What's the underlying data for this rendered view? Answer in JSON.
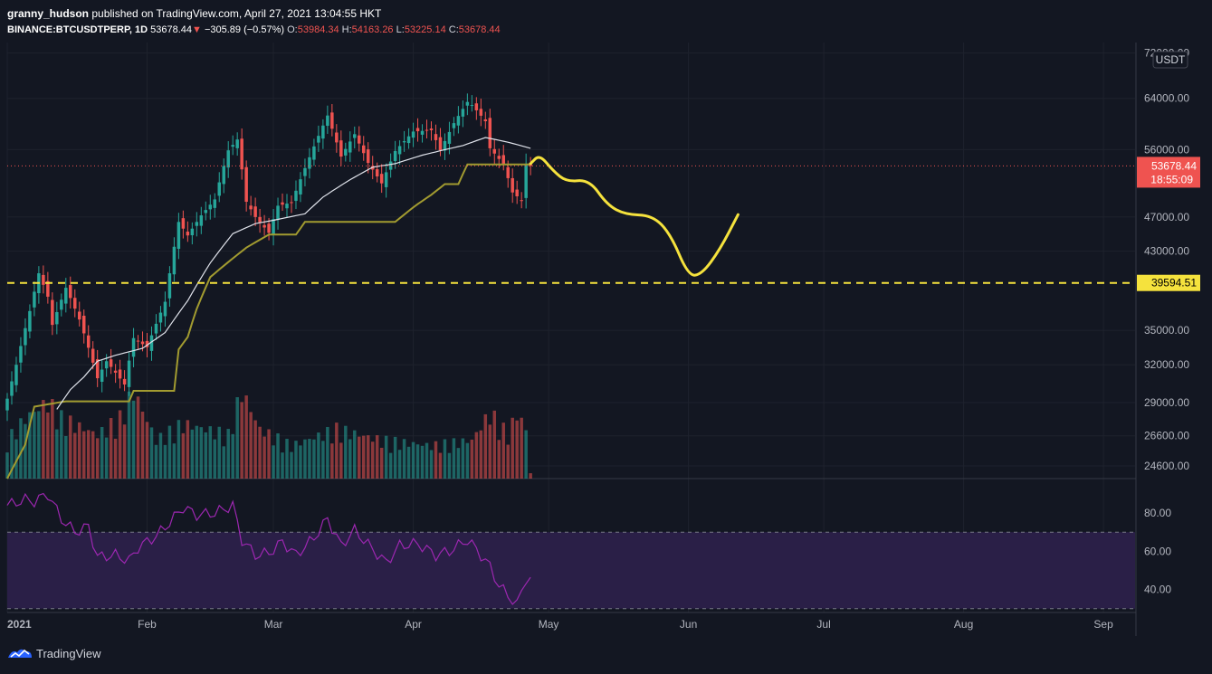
{
  "header": {
    "author": "granny_hudson",
    "published_text": "published on TradingView.com, April 27, 2021 13:04:55 HKT",
    "symbol": "BINANCE:BTCUSDTPERP, 1D",
    "last": "53678.44",
    "change_arrow": "▼",
    "change": "−305.89 (−0.57%)",
    "o_label": "O:",
    "o": "53984.34",
    "h_label": "H:",
    "h": "54163.26",
    "l_label": "L:",
    "l": "53225.14",
    "c_label": "C:",
    "c": "53678.44"
  },
  "currency_badge": "USDT",
  "price_tag": {
    "value": "53678.44",
    "countdown": "18:55:09"
  },
  "level_tag": "39594.51",
  "brand": "TradingView",
  "colors": {
    "background": "#131722",
    "bull": "#26a69a",
    "bear": "#ef5350",
    "ema": "#e0e3eb",
    "baseline": "#a29b30",
    "forecast": "#f5e23d",
    "rsi": "#9c27b0",
    "rsi_band": "#2a1f47"
  },
  "chart_data": [
    {
      "type": "candlestick",
      "title": "",
      "x_type": "date",
      "x_range": [
        "2021-01-01",
        "2021-09-08"
      ],
      "x_ticks": [
        "2021",
        "Feb",
        "Mar",
        "Apr",
        "May",
        "Jun",
        "Jul",
        "Aug",
        "Sep"
      ],
      "y_scale": "log",
      "y_range": [
        23800,
        74000
      ],
      "y_ticks": [
        "72000.00",
        "64000.00",
        "56000.00",
        "47000.00",
        "43000.00",
        "35000.00",
        "32000.00",
        "29000.00",
        "26600.00",
        "24600.00"
      ],
      "close_key_points": [
        [
          "2021-01-01",
          29300
        ],
        [
          "2021-01-03",
          32000
        ],
        [
          "2021-01-06",
          36800
        ],
        [
          "2021-01-08",
          40600
        ],
        [
          "2021-01-10",
          38200
        ],
        [
          "2021-01-11",
          35500
        ],
        [
          "2021-01-14",
          39100
        ],
        [
          "2021-01-17",
          36000
        ],
        [
          "2021-01-21",
          30900
        ],
        [
          "2021-01-23",
          32300
        ],
        [
          "2021-01-27",
          30400
        ],
        [
          "2021-01-29",
          34300
        ],
        [
          "2021-02-01",
          33500
        ],
        [
          "2021-02-05",
          37700
        ],
        [
          "2021-02-08",
          46400
        ],
        [
          "2021-02-10",
          44800
        ],
        [
          "2021-02-13",
          47200
        ],
        [
          "2021-02-16",
          49200
        ],
        [
          "2021-02-19",
          55900
        ],
        [
          "2021-02-21",
          57500
        ],
        [
          "2021-02-23",
          48900
        ],
        [
          "2021-02-25",
          47000
        ],
        [
          "2021-02-28",
          45100
        ],
        [
          "2021-03-02",
          48400
        ],
        [
          "2021-03-05",
          48800
        ],
        [
          "2021-03-09",
          54900
        ],
        [
          "2021-03-13",
          61200
        ],
        [
          "2021-03-16",
          55000
        ],
        [
          "2021-03-19",
          58300
        ],
        [
          "2021-03-22",
          54100
        ],
        [
          "2021-03-25",
          51300
        ],
        [
          "2021-03-28",
          55800
        ],
        [
          "2021-04-01",
          58700
        ],
        [
          "2021-04-05",
          58900
        ],
        [
          "2021-04-07",
          55900
        ],
        [
          "2021-04-10",
          60000
        ],
        [
          "2021-04-13",
          63400
        ],
        [
          "2021-04-14",
          62900
        ],
        [
          "2021-04-17",
          60300
        ],
        [
          "2021-04-18",
          56200
        ],
        [
          "2021-04-21",
          53900
        ],
        [
          "2021-04-23",
          50100
        ],
        [
          "2021-04-25",
          49100
        ],
        [
          "2021-04-26",
          54000
        ],
        [
          "2021-04-27",
          53678
        ]
      ],
      "baseline_key_points": [
        [
          "2021-01-01",
          23800
        ],
        [
          "2021-01-05",
          26000
        ],
        [
          "2021-01-07",
          28700
        ],
        [
          "2021-01-14",
          29100
        ],
        [
          "2021-01-28",
          29100
        ],
        [
          "2021-01-29",
          29900
        ],
        [
          "2021-02-07",
          29900
        ],
        [
          "2021-02-08",
          33300
        ],
        [
          "2021-02-10",
          34400
        ],
        [
          "2021-02-12",
          37000
        ],
        [
          "2021-02-15",
          40200
        ],
        [
          "2021-02-20",
          42200
        ],
        [
          "2021-02-23",
          43400
        ],
        [
          "2021-02-28",
          44900
        ],
        [
          "2021-03-06",
          44900
        ],
        [
          "2021-03-08",
          46400
        ],
        [
          "2021-03-28",
          46400
        ],
        [
          "2021-04-01",
          48200
        ],
        [
          "2021-04-05",
          49800
        ],
        [
          "2021-04-08",
          51200
        ],
        [
          "2021-04-11",
          51200
        ],
        [
          "2021-04-13",
          53900
        ],
        [
          "2021-04-27",
          53900
        ]
      ],
      "ema_key_points": [
        [
          "2021-01-12",
          28500
        ],
        [
          "2021-01-15",
          30000
        ],
        [
          "2021-01-18",
          31000
        ],
        [
          "2021-01-21",
          32300
        ],
        [
          "2021-01-25",
          32800
        ],
        [
          "2021-01-31",
          33400
        ],
        [
          "2021-02-05",
          34800
        ],
        [
          "2021-02-10",
          37800
        ],
        [
          "2021-02-15",
          41700
        ],
        [
          "2021-02-20",
          45000
        ],
        [
          "2021-02-25",
          46200
        ],
        [
          "2021-03-01",
          46600
        ],
        [
          "2021-03-08",
          47400
        ],
        [
          "2021-03-12",
          49500
        ],
        [
          "2021-03-18",
          51800
        ],
        [
          "2021-03-23",
          53500
        ],
        [
          "2021-03-28",
          54000
        ],
        [
          "2021-04-03",
          55200
        ],
        [
          "2021-04-08",
          56000
        ],
        [
          "2021-04-12",
          56600
        ],
        [
          "2021-04-17",
          57800
        ],
        [
          "2021-04-22",
          57100
        ],
        [
          "2021-04-27",
          56200
        ]
      ],
      "horizontal_levels": [
        53678.44,
        39594.51
      ],
      "forecast_path": [
        [
          "2021-04-27",
          54000
        ],
        [
          "2021-04-29",
          55300
        ],
        [
          "2021-05-02",
          53000
        ],
        [
          "2021-05-05",
          51500
        ],
        [
          "2021-05-10",
          51800
        ],
        [
          "2021-05-14",
          48500
        ],
        [
          "2021-05-18",
          47300
        ],
        [
          "2021-05-24",
          47200
        ],
        [
          "2021-05-28",
          45000
        ],
        [
          "2021-06-01",
          40300
        ],
        [
          "2021-06-04",
          40500
        ],
        [
          "2021-06-08",
          43200
        ],
        [
          "2021-06-12",
          47300
        ]
      ],
      "volume_key_points": [
        [
          "2021-01-01",
          0.35
        ],
        [
          "2021-01-05",
          0.55
        ],
        [
          "2021-01-10",
          0.7
        ],
        [
          "2021-01-13",
          0.55
        ],
        [
          "2021-01-21",
          0.4
        ],
        [
          "2021-01-26",
          0.55
        ],
        [
          "2021-01-29",
          0.8
        ],
        [
          "2021-02-03",
          0.35
        ],
        [
          "2021-02-09",
          0.5
        ],
        [
          "2021-02-19",
          0.4
        ],
        [
          "2021-02-22",
          0.8
        ],
        [
          "2021-02-26",
          0.45
        ],
        [
          "2021-03-05",
          0.3
        ],
        [
          "2021-03-15",
          0.45
        ],
        [
          "2021-03-25",
          0.35
        ],
        [
          "2021-04-05",
          0.3
        ],
        [
          "2021-04-14",
          0.35
        ],
        [
          "2021-04-18",
          0.6
        ],
        [
          "2021-04-22",
          0.4
        ],
        [
          "2021-04-24",
          0.6
        ],
        [
          "2021-04-26",
          0.45
        ],
        [
          "2021-04-27",
          0.05
        ]
      ]
    },
    {
      "type": "line",
      "title": "",
      "y_range": [
        28,
        98
      ],
      "y_ticks": [
        "80.00",
        "60.00",
        "40.00"
      ],
      "bands": [
        70,
        30
      ],
      "rsi_key_points": [
        [
          "2021-01-01",
          84
        ],
        [
          "2021-01-05",
          87
        ],
        [
          "2021-01-07",
          86
        ],
        [
          "2021-01-10",
          90
        ],
        [
          "2021-01-13",
          77
        ],
        [
          "2021-01-16",
          70
        ],
        [
          "2021-01-19",
          73
        ],
        [
          "2021-01-21",
          57
        ],
        [
          "2021-01-25",
          58
        ],
        [
          "2021-01-28",
          55
        ],
        [
          "2021-01-30",
          62
        ],
        [
          "2021-02-03",
          68
        ],
        [
          "2021-02-06",
          75
        ],
        [
          "2021-02-09",
          83
        ],
        [
          "2021-02-12",
          79
        ],
        [
          "2021-02-16",
          80
        ],
        [
          "2021-02-20",
          84
        ],
        [
          "2021-02-22",
          66
        ],
        [
          "2021-02-25",
          58
        ],
        [
          "2021-02-28",
          59
        ],
        [
          "2021-03-03",
          65
        ],
        [
          "2021-03-06",
          58
        ],
        [
          "2021-03-10",
          67
        ],
        [
          "2021-03-13",
          77
        ],
        [
          "2021-03-16",
          63
        ],
        [
          "2021-03-19",
          71
        ],
        [
          "2021-03-23",
          61
        ],
        [
          "2021-03-26",
          54
        ],
        [
          "2021-03-29",
          63
        ],
        [
          "2021-04-02",
          64
        ],
        [
          "2021-04-06",
          58
        ],
        [
          "2021-04-09",
          60
        ],
        [
          "2021-04-13",
          66
        ],
        [
          "2021-04-15",
          61
        ],
        [
          "2021-04-18",
          52
        ],
        [
          "2021-04-20",
          42
        ],
        [
          "2021-04-22",
          37
        ],
        [
          "2021-04-24",
          32
        ],
        [
          "2021-04-26",
          46
        ],
        [
          "2021-04-27",
          45
        ]
      ]
    }
  ]
}
